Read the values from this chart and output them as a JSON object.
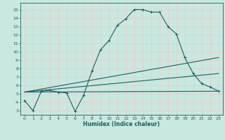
{
  "xlabel": "Humidex (Indice chaleur)",
  "background_color": "#c8e8e0",
  "grid_color": "#f0c8c8",
  "line_color": "#1a6060",
  "spine_color": "#1a6060",
  "ylim": [
    2.5,
    15.8
  ],
  "xlim": [
    -0.5,
    23.5
  ],
  "yticks": [
    3,
    4,
    5,
    6,
    7,
    8,
    9,
    10,
    11,
    12,
    13,
    14,
    15
  ],
  "xticks": [
    0,
    1,
    2,
    3,
    4,
    5,
    6,
    7,
    8,
    9,
    10,
    11,
    12,
    13,
    14,
    15,
    16,
    17,
    18,
    19,
    20,
    21,
    22,
    23
  ],
  "line1_x": [
    0,
    1,
    2,
    3,
    4,
    5,
    6,
    7,
    8,
    9,
    10,
    11,
    12,
    13,
    14,
    15,
    16,
    17,
    18,
    19,
    20,
    21,
    22,
    23
  ],
  "line1_y": [
    4.2,
    3.0,
    5.3,
    5.4,
    5.2,
    5.1,
    2.9,
    4.8,
    7.7,
    10.2,
    11.3,
    13.1,
    13.9,
    15.0,
    15.0,
    14.7,
    14.7,
    13.0,
    12.1,
    9.3,
    7.4,
    6.2,
    5.8,
    5.3
  ],
  "line2_x": [
    0,
    23
  ],
  "line2_y": [
    5.2,
    5.3
  ],
  "line3_x": [
    0,
    23
  ],
  "line3_y": [
    5.2,
    9.3
  ],
  "line4_x": [
    0,
    23
  ],
  "line4_y": [
    5.2,
    7.4
  ],
  "tick_fontsize": 4.5,
  "xlabel_fontsize": 5.5,
  "linewidth": 0.8,
  "marker_size": 2.5
}
